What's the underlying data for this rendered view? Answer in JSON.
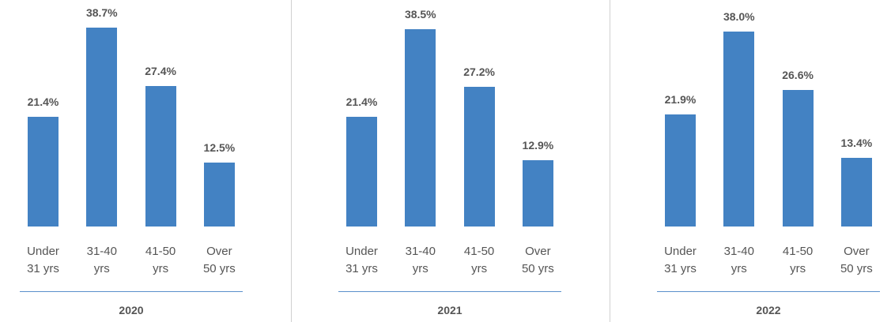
{
  "chart_data": [
    {
      "type": "bar",
      "title": "2020",
      "color": "#4382c3",
      "categories": [
        "Under 31 yrs",
        "31-40 yrs",
        "41-50 yrs",
        "Over 50 yrs"
      ],
      "values": [
        21.4,
        38.7,
        27.4,
        12.5
      ],
      "value_labels": [
        "21.4%",
        "38.7%",
        "27.4%",
        "12.5%"
      ]
    },
    {
      "type": "bar",
      "title": "2021",
      "color": "#4382c3",
      "categories": [
        "Under 31 yrs",
        "31-40 yrs",
        "41-50 yrs",
        "Over 50 yrs"
      ],
      "values": [
        21.4,
        38.5,
        27.2,
        12.9
      ],
      "value_labels": [
        "21.4%",
        "38.5%",
        "27.2%",
        "12.9%"
      ]
    },
    {
      "type": "bar",
      "title": "2022",
      "color": "#4382c3",
      "categories": [
        "Under 31 yrs",
        "31-40 yrs",
        "41-50 yrs",
        "Over 50 yrs"
      ],
      "values": [
        21.9,
        38.0,
        26.6,
        13.4
      ],
      "value_labels": [
        "21.9%",
        "38.0%",
        "26.6%",
        "13.4%"
      ]
    }
  ]
}
